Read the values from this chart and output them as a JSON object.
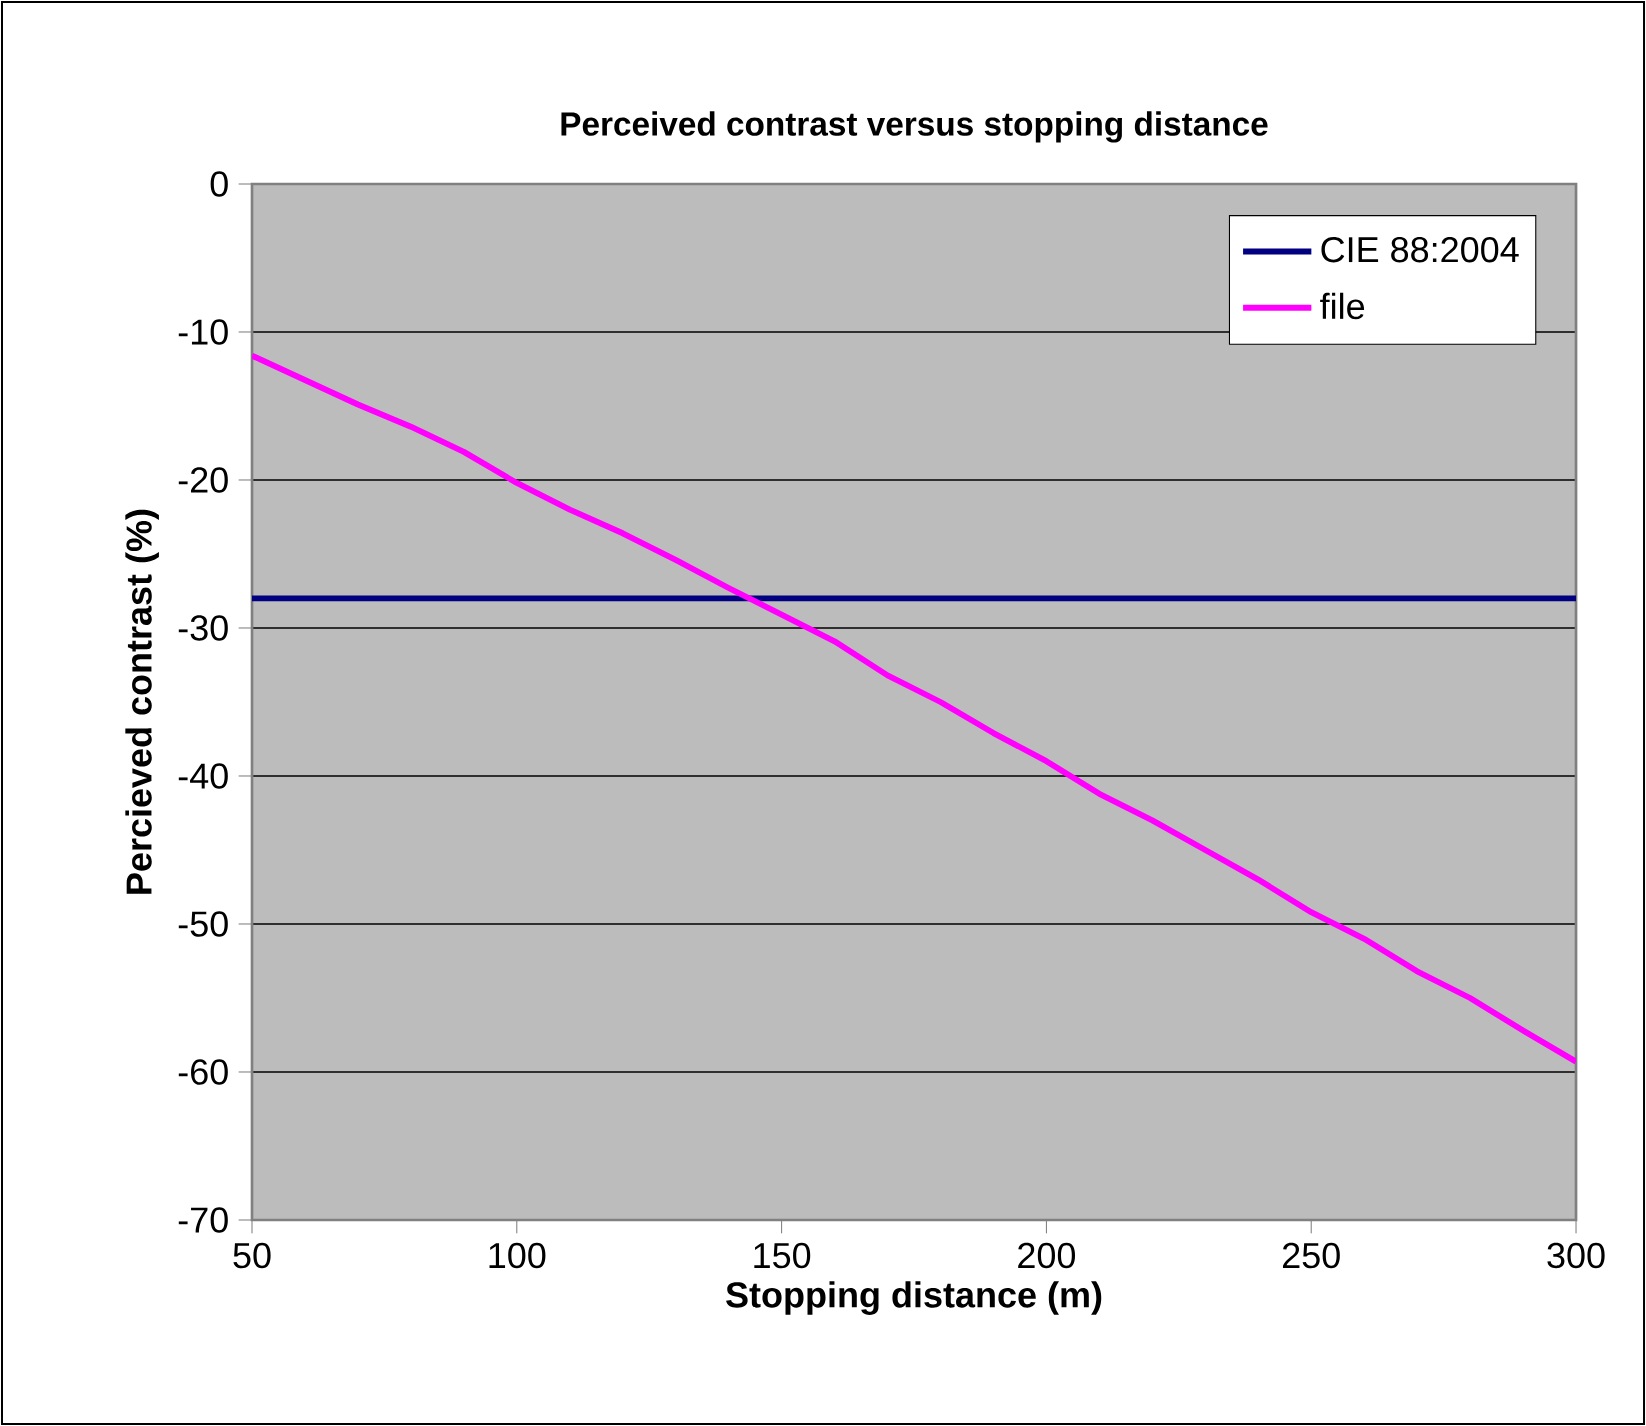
{
  "chart_data": {
    "type": "line",
    "title": "Perceived contrast versus stopping distance",
    "xlabel": "Stopping distance (m)",
    "ylabel": "Percieved contrast (%)",
    "xlim": [
      50,
      300
    ],
    "xticks": [
      50,
      100,
      150,
      200,
      250,
      300
    ],
    "ylim": [
      -70,
      0
    ],
    "yticks": [
      -70,
      -60,
      -50,
      -40,
      -30,
      -20,
      -10,
      0
    ],
    "grid": "y",
    "legend": "top right",
    "marker": "none",
    "line_style": "solid",
    "series": [
      {
        "name": "CIE 88:2004",
        "color": "#000080",
        "x": [
          50,
          300
        ],
        "values": [
          -28,
          -28
        ]
      },
      {
        "name": "file",
        "color": "#ff00ff",
        "x": [
          50,
          70,
          80,
          90,
          100,
          110,
          120,
          130,
          140,
          150,
          160,
          170,
          180,
          190,
          200,
          210,
          220,
          230,
          240,
          250,
          260,
          270,
          280,
          290,
          300
        ],
        "values": [
          -11.6,
          -14.9,
          -16.4,
          -18.1,
          -20.2,
          -22,
          -23.6,
          -25.4,
          -27.3,
          -29.1,
          -30.9,
          -33.2,
          -35,
          -37.1,
          -39,
          -41.2,
          -43,
          -45,
          -47,
          -49.2,
          -51,
          -53.2,
          -55,
          -57.2,
          -59.3
        ]
      }
    ]
  }
}
